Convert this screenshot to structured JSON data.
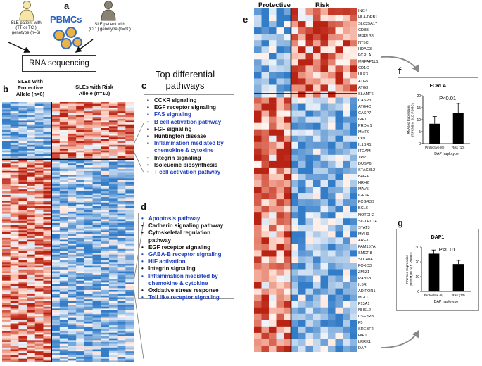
{
  "panel_a": {
    "label": "a",
    "title": "PBMCs",
    "left_patient": [
      "SLE patient with",
      "(TT or TC )",
      "genotype (n=6)"
    ],
    "right_patient": [
      "SLE patient with",
      "(CC ) genotype (n=10)"
    ],
    "rna_box": "RNA sequencing"
  },
  "panel_b": {
    "label": "b",
    "group1": [
      "SLEs with",
      "Protective",
      "Allele (n=6)"
    ],
    "group2": [
      "SLEs with Risk",
      "Allele (n=10)"
    ]
  },
  "panel_c": {
    "label": "c",
    "heading": [
      "Top differential",
      "pathways"
    ],
    "items": [
      {
        "text": "CCKR signaling",
        "color": "#111111"
      },
      {
        "text": "EGF receptor signaling",
        "color": "#111111"
      },
      {
        "text": "FAS signaling",
        "color": "#1f3fbf"
      },
      {
        "text": "B cell activation pathway",
        "color": "#1f3fbf"
      },
      {
        "text": "FGF signaling",
        "color": "#111111"
      },
      {
        "text": "Huntington disease",
        "color": "#111111"
      },
      {
        "text": "Inflammation mediated by",
        "color": "#1f3fbf"
      },
      {
        "text": "chemokine & cytokine",
        "color": "#1f3fbf",
        "continuation": true
      },
      {
        "text": "Integrin signaling",
        "color": "#111111"
      },
      {
        "text": "Isoleucine biosynthesis",
        "color": "#111111"
      },
      {
        "text": "T cell activation pathway",
        "color": "#1f3fbf"
      }
    ]
  },
  "panel_d": {
    "label": "d",
    "items": [
      {
        "text": "Apoptosis pathway",
        "color": "#1f3fbf"
      },
      {
        "text": "Cadherin signaling pathway",
        "color": "#111111"
      },
      {
        "text": "Cytoskeletal regulation",
        "color": "#111111"
      },
      {
        "text": "pathway",
        "color": "#111111",
        "continuation": true
      },
      {
        "text": "EGF receptor signaling",
        "color": "#111111"
      },
      {
        "text": "GABA-B receptor signaling",
        "color": "#1f3fbf"
      },
      {
        "text": "HIF activation",
        "color": "#1f3fbf"
      },
      {
        "text": "Integrin signaling",
        "color": "#111111"
      },
      {
        "text": "Inflammation mediated by",
        "color": "#1f3fbf"
      },
      {
        "text": "chemokine & cytokine",
        "color": "#1f3fbf",
        "continuation": true
      },
      {
        "text": "Oxidative stress response",
        "color": "#111111"
      },
      {
        "text": "Toll like receptor signaling",
        "color": "#1f3fbf"
      }
    ]
  },
  "panel_e": {
    "label": "e",
    "col_protective": "Protective",
    "col_risk": "Risk",
    "genes": [
      "ING4",
      "HLA-DPB1",
      "SLC25A17",
      "CD8B",
      "MRPL38",
      "NT5C",
      "HDAC3",
      "FCRLA",
      "MRFAP1L1",
      "CD1C",
      "ULK3",
      "ATG5",
      "ATG3",
      "SLAMF6",
      "CASP3",
      "ATG4C",
      "CASP7",
      "IRF1",
      "PRDM1",
      "MMP9",
      "LYN",
      "IL1BR1",
      "ITGAM",
      "TPP1",
      "DUSP6",
      "STAG3L2",
      "B4GALT1",
      "HRH2",
      "MAV5",
      "IGF1R",
      "FCGR3B",
      "BCL6",
      "NOTCH2",
      "SIGLEC14",
      "STAT3",
      "MYH9",
      "ARF3",
      "FAM157A",
      "SMCR8",
      "SLC40A1",
      "FOXO3",
      "ZMIZ1",
      "RAB5B",
      "IL6R",
      "ADIPOR1",
      "MGLL",
      "F13A1",
      "NHSL2",
      "CSF2RB",
      "F5",
      "SREBF2",
      "HIP1",
      "LRRK1",
      "DAP"
    ]
  },
  "panel_f": {
    "label": "f",
    "chart_data": {
      "type": "bar",
      "title": "FCRLA",
      "categories": [
        "Protective (6)",
        "Risk (10)"
      ],
      "values": [
        8.3,
        12.8
      ],
      "errors": [
        3.0,
        4.0
      ],
      "ylim": [
        0,
        20
      ],
      "yticks": [
        0,
        5,
        10,
        15,
        20
      ],
      "ylabel": [
        "RNAseq Expression",
        "(RPKM) in SLE PBMCs"
      ],
      "xlabel": "DAP haplotype",
      "annotation": "P<0.01"
    }
  },
  "panel_g": {
    "label": "g",
    "chart_data": {
      "type": "bar",
      "title": "DAP1",
      "categories": [
        "Protective (6)",
        "Risk (10)"
      ],
      "values": [
        25.5,
        18.5
      ],
      "errors": [
        2.5,
        2.5
      ],
      "ylim": [
        0,
        30
      ],
      "yticks": [
        0,
        10,
        20,
        30
      ],
      "ylabel": [
        "RNAseq Expression",
        "(RPKM) in SLE PBMCs"
      ],
      "xlabel": "DAP haplotype",
      "annotation": "P<0.01"
    }
  }
}
